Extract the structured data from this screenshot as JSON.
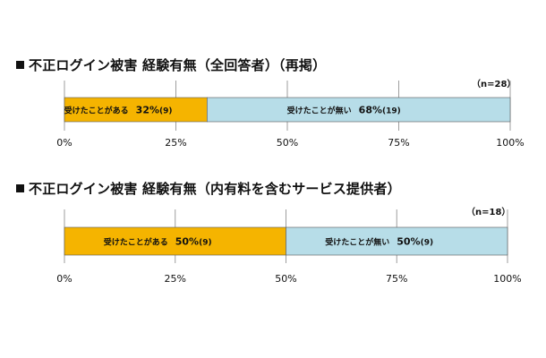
{
  "chart_data": [
    {
      "type": "bar",
      "orientation": "horizontal-stacked-100",
      "title": "不正ログイン被害 経験有無（全回答者）（再掲）",
      "sample_note": "（n=28）",
      "series": [
        {
          "name": "受けたことがある",
          "values": [
            32
          ],
          "count_label": "(9)",
          "value_label": "32%",
          "color": "#F5B400"
        },
        {
          "name": "受けたことが無い",
          "values": [
            68
          ],
          "count_label": "(19)",
          "value_label": "68%",
          "color": "#B7DDE8"
        }
      ],
      "xlim": [
        0,
        100
      ],
      "x_ticks": [
        "0%",
        "25%",
        "50%",
        "75%",
        "100%"
      ],
      "grid": true
    },
    {
      "type": "bar",
      "orientation": "horizontal-stacked-100",
      "title": "不正ログイン被害 経験有無（内有料を含むサービス提供者）",
      "sample_note": "（n=18）",
      "series": [
        {
          "name": "受けたことがある",
          "values": [
            50
          ],
          "count_label": "(9)",
          "value_label": "50%",
          "color": "#F5B400"
        },
        {
          "name": "受けたことが無い",
          "values": [
            50
          ],
          "count_label": "(9)",
          "value_label": "50%",
          "color": "#B7DDE8"
        }
      ],
      "xlim": [
        0,
        100
      ],
      "x_ticks": [
        "0%",
        "25%",
        "50%",
        "75%",
        "100%"
      ],
      "grid": true
    }
  ],
  "colors": {
    "gridline": "#9E9E9E",
    "bar_border": "#555555"
  }
}
